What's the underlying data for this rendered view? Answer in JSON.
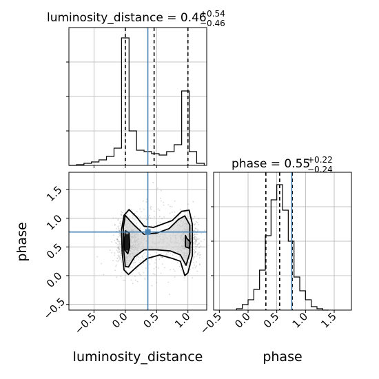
{
  "chart_data": [
    {
      "panel": "luminosity_distance-marginal",
      "type": "histogram",
      "title": "luminosity_distance = 0.46",
      "title_sup": "+0.54",
      "title_sub": "−0.46",
      "xlim": [
        -0.9,
        1.3
      ],
      "ylim": [
        0,
        200
      ],
      "xgrid": [
        -0.5,
        0.0,
        0.5,
        1.0
      ],
      "ygrid": [
        50,
        100,
        150
      ],
      "bin_edges": [
        -0.9,
        -0.78,
        -0.66,
        -0.54,
        -0.42,
        -0.3,
        -0.18,
        -0.06,
        0.06,
        0.18,
        0.3,
        0.42,
        0.54,
        0.66,
        0.78,
        0.9,
        1.02,
        1.14,
        1.26
      ],
      "counts": [
        0,
        1,
        3,
        5,
        8,
        13,
        25,
        185,
        50,
        22,
        20,
        17,
        15,
        20,
        30,
        108,
        20,
        3
      ],
      "quantiles": [
        0.0,
        0.46,
        1.0
      ],
      "truth": 0.36,
      "colors": {
        "step": "#000000",
        "truth": "#4682b4",
        "grid": "#b0b0b0"
      }
    },
    {
      "panel": "phase-vs-luminosity_distance",
      "type": "scatter",
      "xlabel": "luminosity_distance",
      "ylabel": "phase",
      "xlim": [
        -0.9,
        1.3
      ],
      "ylim": [
        -0.6,
        1.8
      ],
      "xticks": [
        -0.5,
        0.0,
        0.5,
        1.0
      ],
      "xtick_labels": [
        "−0.5",
        "0.0",
        "0.5",
        "1.0"
      ],
      "yticks": [
        -0.5,
        0.0,
        0.5,
        1.0,
        1.5
      ],
      "ytick_labels": [
        "−0.5",
        "0.0",
        "0.5",
        "1.0",
        "1.5"
      ],
      "clusters": [
        {
          "x": 0.05,
          "y": 0.6,
          "sx": 0.1,
          "sy": 0.22,
          "n": 620
        },
        {
          "x": 1.0,
          "y": 0.6,
          "sx": 0.09,
          "sy": 0.22,
          "n": 520
        },
        {
          "x": 0.5,
          "y": 0.62,
          "sx": 0.32,
          "sy": 0.3,
          "n": 380
        }
      ],
      "contours": [
        [
          [
            0.06,
            1.15
          ],
          [
            0.18,
            1.02
          ],
          [
            0.3,
            0.86
          ],
          [
            0.45,
            0.84
          ],
          [
            0.6,
            0.9
          ],
          [
            0.75,
            0.96
          ],
          [
            0.9,
            1.12
          ],
          [
            1.02,
            1.14
          ],
          [
            1.07,
            0.9
          ],
          [
            1.07,
            0.35
          ],
          [
            1.0,
            0.05
          ],
          [
            0.95,
            0.0
          ],
          [
            0.88,
            0.25
          ],
          [
            0.75,
            0.3
          ],
          [
            0.55,
            0.36
          ],
          [
            0.35,
            0.3
          ],
          [
            0.18,
            0.15
          ],
          [
            0.05,
            0.02
          ],
          [
            -0.02,
            0.1
          ],
          [
            -0.05,
            0.4
          ],
          [
            -0.06,
            0.8
          ],
          [
            -0.02,
            1.05
          ]
        ],
        [
          [
            0.0,
            1.05
          ],
          [
            0.08,
            0.95
          ],
          [
            0.15,
            0.87
          ],
          [
            0.3,
            0.72
          ],
          [
            0.5,
            0.74
          ],
          [
            0.7,
            0.82
          ],
          [
            0.85,
            0.98
          ],
          [
            0.95,
            1.04
          ],
          [
            1.03,
            0.88
          ],
          [
            1.03,
            0.4
          ],
          [
            0.97,
            0.18
          ],
          [
            0.88,
            0.36
          ],
          [
            0.72,
            0.43
          ],
          [
            0.5,
            0.45
          ],
          [
            0.3,
            0.45
          ],
          [
            0.15,
            0.33
          ],
          [
            0.05,
            0.15
          ],
          [
            0.0,
            0.16
          ],
          [
            -0.03,
            0.5
          ],
          [
            -0.03,
            0.85
          ]
        ],
        [
          [
            0.0,
            0.78
          ],
          [
            0.06,
            0.75
          ],
          [
            0.07,
            0.5
          ],
          [
            0.04,
            0.38
          ],
          [
            -0.01,
            0.45
          ],
          [
            -0.01,
            0.65
          ]
        ],
        [
          [
            0.98,
            0.65
          ],
          [
            1.04,
            0.58
          ],
          [
            1.02,
            0.48
          ],
          [
            0.96,
            0.5
          ],
          [
            0.96,
            0.7
          ]
        ]
      ],
      "core": [
        [
          0.0,
          0.72
        ],
        [
          0.06,
          0.72
        ],
        [
          0.06,
          0.44
        ],
        [
          0.0,
          0.44
        ]
      ],
      "truth": {
        "x": 0.36,
        "y": 0.76
      },
      "colors": {
        "points": "#808080",
        "density": "#c4c4c4",
        "density_core": "#1a1a1a",
        "contour": "#000000",
        "truth": "#4682b4"
      }
    },
    {
      "panel": "phase-marginal",
      "type": "histogram",
      "title": "phase = 0.55",
      "title_sup": "+0.22",
      "title_sub": "−0.24",
      "xlabel": "phase",
      "xlim": [
        -0.6,
        1.8
      ],
      "ylim": [
        0,
        200
      ],
      "xticks": [
        -0.5,
        0.0,
        0.5,
        1.0,
        1.5
      ],
      "xtick_labels": [
        "−0.5",
        "0.0",
        "0.5",
        "1.0",
        "1.5"
      ],
      "ygrid": [
        50,
        100,
        150
      ],
      "bin_edges": [
        -0.2,
        -0.1,
        0.0,
        0.1,
        0.2,
        0.3,
        0.4,
        0.5,
        0.6,
        0.7,
        0.8,
        0.9,
        1.0,
        1.1,
        1.2,
        1.3,
        1.4
      ],
      "counts": [
        2,
        8,
        15,
        30,
        58,
        108,
        160,
        182,
        145,
        100,
        48,
        28,
        15,
        5,
        2,
        0
      ],
      "quantiles": [
        0.31,
        0.55,
        0.77
      ],
      "truth": 0.76,
      "colors": {
        "step": "#000000",
        "truth": "#4682b4",
        "grid": "#b0b0b0"
      }
    }
  ]
}
